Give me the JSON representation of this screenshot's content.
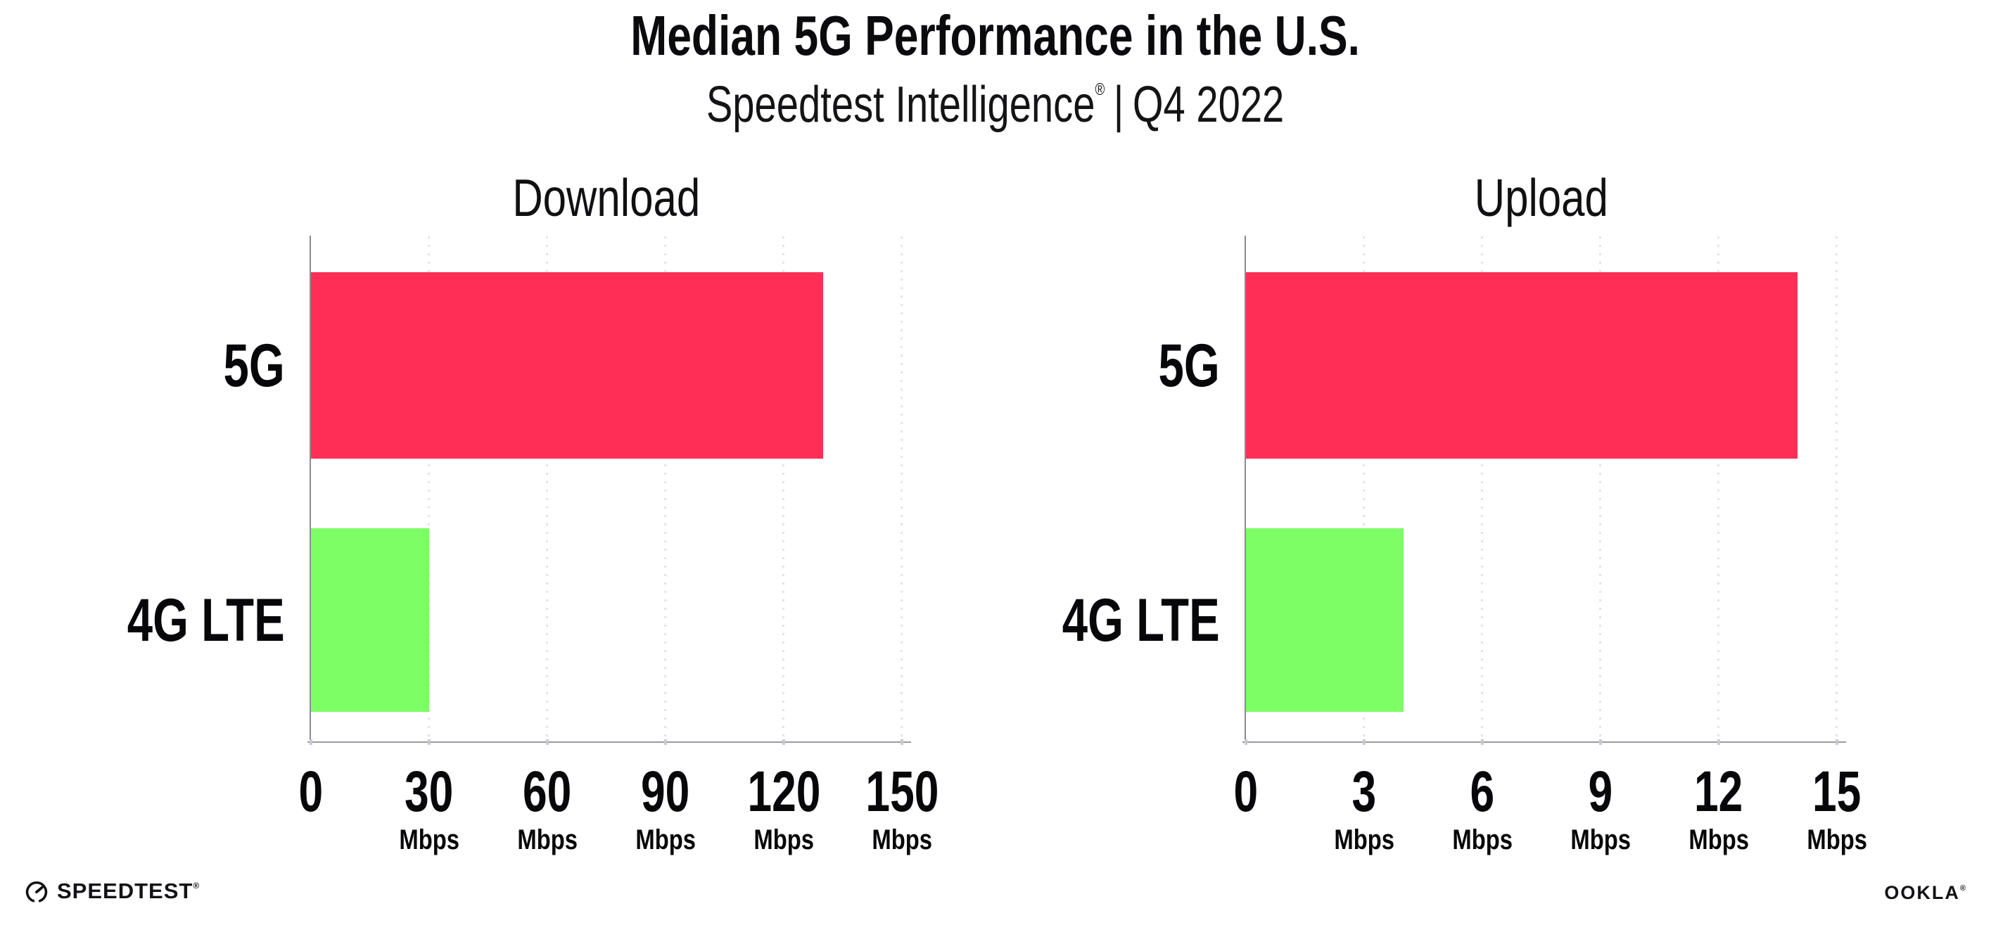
{
  "header": {
    "title": "Median 5G Performance in the U.S.",
    "subtitle": {
      "brand": "Speedtest Intelligence",
      "reg_mark": "®",
      "separator": "|",
      "period": "Q4 2022"
    }
  },
  "chart_data": [
    {
      "type": "bar",
      "orientation": "horizontal",
      "title": "Download",
      "categories": [
        "5G",
        "4G LTE"
      ],
      "values": [
        130,
        30
      ],
      "unit": "Mbps",
      "xlim": [
        0,
        150
      ],
      "xticks": [
        0,
        30,
        60,
        90,
        120,
        150
      ],
      "tick_unit": "Mbps",
      "bar_colors": [
        "#FF2E56",
        "#7DFE64"
      ],
      "grid": "vertical-dotted",
      "legend": "none"
    },
    {
      "type": "bar",
      "orientation": "horizontal",
      "title": "Upload",
      "categories": [
        "5G",
        "4G LTE"
      ],
      "values": [
        14,
        4
      ],
      "unit": "Mbps",
      "xlim": [
        0,
        15
      ],
      "xticks": [
        0,
        3,
        6,
        9,
        12,
        15
      ],
      "tick_unit": "Mbps",
      "bar_colors": [
        "#FF2E56",
        "#7DFE64"
      ],
      "grid": "vertical-dotted",
      "legend": "none"
    }
  ],
  "footer": {
    "speedtest_logo_text": "SPEEDTEST",
    "speedtest_trademark": "®",
    "ookla_logo_text": "OOKLA",
    "ookla_trademark": "®"
  },
  "colors": {
    "bar_5g": "#FF2E56",
    "bar_4g_lte": "#7DFE64",
    "x_axis_line": "#9A9AA2",
    "y_axis_line": "#8A8A92",
    "gridline": "#DFE0EA",
    "text": "#0C0C0E"
  }
}
